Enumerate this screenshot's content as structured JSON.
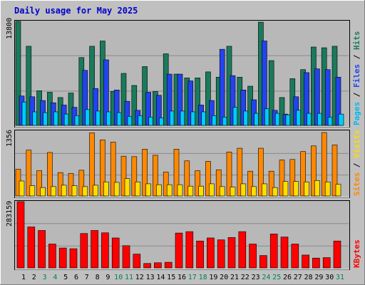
{
  "chart_data": [
    {
      "type": "bar",
      "title": "Daily usage for May 2025",
      "panel": "pages-files-hits",
      "ymax_label": "13800",
      "ylim": [
        0,
        13800
      ],
      "grid": true,
      "legend": [
        "Pages",
        "Files",
        "Hits"
      ],
      "categories": [
        "1",
        "2",
        "3",
        "4",
        "5",
        "6",
        "7",
        "8",
        "9",
        "10",
        "11",
        "12",
        "13",
        "14",
        "15",
        "16",
        "17",
        "18",
        "19",
        "20",
        "21",
        "22",
        "23",
        "24",
        "25",
        "26",
        "27",
        "28",
        "29",
        "30",
        "31"
      ],
      "series": [
        {
          "name": "Hits",
          "color": "#1a7a5c",
          "values": [
            13800,
            10500,
            4600,
            4400,
            3700,
            4300,
            9000,
            10500,
            11200,
            4500,
            6900,
            5300,
            7800,
            4500,
            9500,
            6800,
            6300,
            6300,
            7100,
            6400,
            10500,
            6400,
            5200,
            13700,
            8600,
            3700,
            6200,
            7400,
            10400,
            10300,
            10500
          ]
        },
        {
          "name": "Files",
          "color": "#2244ee",
          "values": [
            3900,
            3800,
            3300,
            3000,
            2700,
            2400,
            7300,
            4900,
            8700,
            4700,
            3200,
            2000,
            4400,
            4000,
            6800,
            6800,
            5900,
            2700,
            3300,
            10100,
            6600,
            4700,
            3400,
            11200,
            2000,
            1500,
            3800,
            7000,
            7500,
            7400,
            6400
          ]
        },
        {
          "name": "Pages",
          "color": "#00ccff",
          "values": [
            3100,
            1800,
            1700,
            1800,
            1500,
            1300,
            2100,
            1900,
            1800,
            1700,
            1200,
            1300,
            1100,
            1000,
            1900,
            1900,
            1800,
            1800,
            1300,
            1100,
            2400,
            1900,
            1600,
            2200,
            1600,
            1400,
            2000,
            1600,
            1600,
            1100,
            1500
          ]
        }
      ],
      "side_labels": [
        "Pages",
        "Files",
        "Hits"
      ],
      "side_colors": [
        "#00bbee",
        "#2244ee",
        "#1a7a5c"
      ]
    },
    {
      "type": "bar",
      "panel": "sites-visits",
      "ymax_label": "1356",
      "ylim": [
        0,
        1356
      ],
      "grid": true,
      "legend": [
        "Sites",
        "Visits"
      ],
      "categories": [
        "1",
        "2",
        "3",
        "4",
        "5",
        "6",
        "7",
        "8",
        "9",
        "10",
        "11",
        "12",
        "13",
        "14",
        "15",
        "16",
        "17",
        "18",
        "19",
        "20",
        "21",
        "22",
        "23",
        "24",
        "25",
        "26",
        "27",
        "28",
        "29",
        "30",
        "31"
      ],
      "series": [
        {
          "name": "Visits",
          "color": "#ff8800",
          "values": [
            570,
            980,
            540,
            930,
            500,
            480,
            550,
            1350,
            1200,
            1150,
            850,
            840,
            1000,
            870,
            510,
            1000,
            750,
            540,
            740,
            560,
            940,
            1020,
            530,
            1020,
            530,
            770,
            780,
            950,
            1070,
            1356,
            1090
          ]
        },
        {
          "name": "Sites",
          "color": "#ffdd00",
          "values": [
            320,
            220,
            180,
            200,
            230,
            220,
            200,
            230,
            300,
            290,
            370,
            300,
            260,
            240,
            240,
            240,
            210,
            210,
            260,
            200,
            190,
            260,
            200,
            260,
            180,
            310,
            310,
            300,
            330,
            300,
            250
          ]
        }
      ],
      "side_labels": [
        "Sites",
        "Visits"
      ],
      "side_colors": [
        "#ff8800",
        "#ffdd00"
      ]
    },
    {
      "type": "bar",
      "panel": "kbytes",
      "ymax_label": "283159",
      "ylim": [
        0,
        283159
      ],
      "grid": true,
      "legend": [
        "KBytes"
      ],
      "categories": [
        "1",
        "2",
        "3",
        "4",
        "5",
        "6",
        "7",
        "8",
        "9",
        "10",
        "11",
        "12",
        "13",
        "14",
        "15",
        "16",
        "17",
        "18",
        "19",
        "20",
        "21",
        "22",
        "23",
        "24",
        "25",
        "26",
        "27",
        "28",
        "29",
        "30",
        "31"
      ],
      "series": [
        {
          "name": "KBytes",
          "color": "#ff0000",
          "values": [
            283159,
            175000,
            160000,
            102000,
            85000,
            82000,
            147000,
            160000,
            150000,
            128000,
            95000,
            59000,
            19000,
            22000,
            24000,
            149000,
            155000,
            115000,
            128000,
            120000,
            130000,
            155000,
            102000,
            53000,
            145000,
            132000,
            102000,
            55000,
            42000,
            44000,
            115000
          ]
        }
      ],
      "side_labels": [
        "KBytes"
      ],
      "side_colors": [
        "#ff0000"
      ]
    }
  ],
  "x_label_colors": {
    "weekday": "#000000",
    "weekend": "#00805c"
  },
  "weekend_days": [
    "3",
    "4",
    "10",
    "11",
    "17",
    "18",
    "24",
    "25",
    "31"
  ],
  "separator": "/"
}
